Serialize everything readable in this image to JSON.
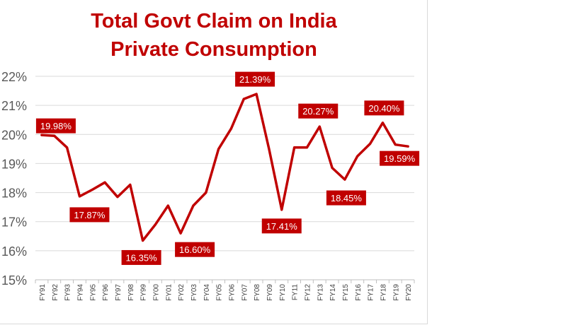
{
  "chart_data": {
    "type": "line",
    "title_lines": [
      "Total Govt Claim on India",
      "Private Consumption"
    ],
    "xlabel": "",
    "ylabel": "",
    "ylim": [
      15,
      22
    ],
    "yticks": [
      "15%",
      "16%",
      "17%",
      "18%",
      "19%",
      "20%",
      "21%",
      "22%"
    ],
    "grid": true,
    "series_color": "#c00000",
    "categories": [
      "FY91",
      "FY92",
      "FY93",
      "FY94",
      "FY95",
      "FY96",
      "FY97",
      "FY98",
      "FY99",
      "FY00",
      "FY01",
      "FY02",
      "FY03",
      "FY04",
      "FY05",
      "FY06",
      "FY07",
      "FY08",
      "FY09",
      "FY10",
      "FY11",
      "FY12",
      "FY13",
      "FY14",
      "FY15",
      "FY16",
      "FY17",
      "FY18",
      "FY19",
      "FY20"
    ],
    "series": [
      {
        "name": "Total Govt Claim on India Private Consumption",
        "values": [
          19.98,
          19.95,
          19.55,
          17.87,
          18.1,
          18.35,
          17.85,
          18.27,
          16.35,
          16.9,
          17.55,
          16.6,
          17.55,
          18.0,
          19.5,
          20.2,
          21.22,
          21.39,
          19.5,
          17.41,
          19.55,
          19.55,
          20.27,
          18.85,
          18.45,
          19.25,
          19.68,
          20.4,
          19.65,
          19.59
        ]
      }
    ],
    "data_labels": [
      {
        "index": 0,
        "text": "19.98%"
      },
      {
        "index": 3,
        "text": "17.87%"
      },
      {
        "index": 8,
        "text": "16.35%"
      },
      {
        "index": 11,
        "text": "16.60%"
      },
      {
        "index": 17,
        "text": "21.39%"
      },
      {
        "index": 19,
        "text": "17.41%"
      },
      {
        "index": 22,
        "text": "20.27%"
      },
      {
        "index": 24,
        "text": "18.45%"
      },
      {
        "index": 27,
        "text": "20.40%"
      },
      {
        "index": 29,
        "text": "19.59%"
      }
    ]
  }
}
